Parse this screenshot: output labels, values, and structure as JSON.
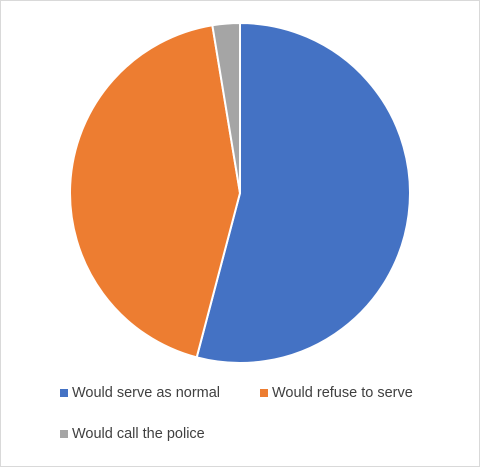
{
  "chart_data": {
    "type": "pie",
    "categories": [
      "Would serve as normal",
      "Would refuse to serve",
      "Would call the police"
    ],
    "values": [
      54.1,
      43.3,
      2.6
    ],
    "colors": [
      "#4472c4",
      "#ed7d31",
      "#a5a5a5"
    ]
  }
}
